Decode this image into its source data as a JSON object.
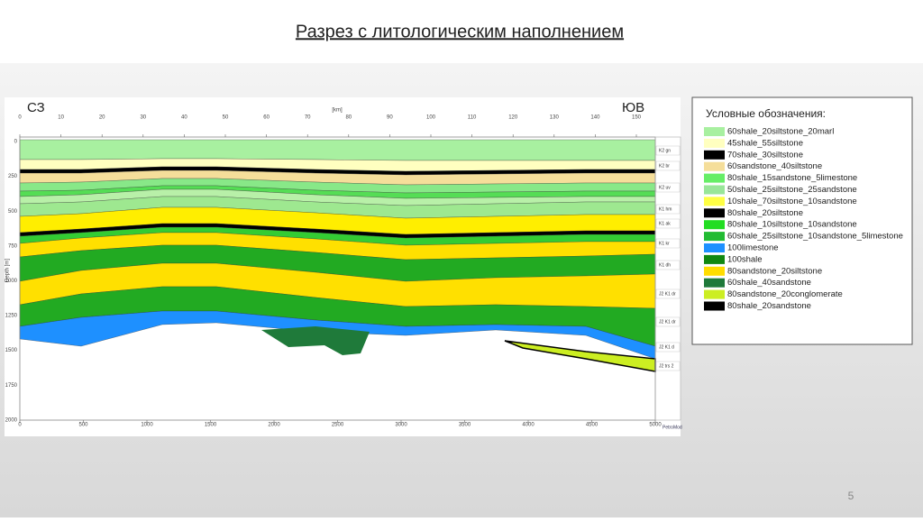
{
  "title": "Разрез с литологическим наполнением",
  "page_number": "5",
  "section": {
    "left_label": "СЗ",
    "right_label": "ЮВ",
    "top_axis_label": "[km]",
    "top_ticks": [
      0,
      10,
      20,
      30,
      40,
      50,
      60,
      70,
      80,
      90,
      100,
      110,
      120,
      130,
      140,
      150
    ],
    "depth_label": "Depth [m]",
    "depth_ticks": [
      0,
      250,
      500,
      750,
      1000,
      1250,
      1500,
      1750,
      2000
    ],
    "bottom_ticks": [
      0,
      500,
      1000,
      1500,
      2000,
      2500,
      3000,
      3500,
      4000,
      4500,
      5000
    ],
    "layer_labels": [
      "K2 gn",
      "K2 br",
      "K2 uv",
      "K1 hm",
      "K1 ak",
      "K1 kr",
      "K1 dh",
      "J2 K1 dr",
      "J2 K1 dr",
      "J2 K1 d",
      "J2 trs 2"
    ],
    "logo": "PetroMod"
  },
  "legend": {
    "title": "Условные обозначения:",
    "items": [
      {
        "label": "60shale_20siltstone_20marl",
        "color": "#a8f0a0"
      },
      {
        "label": "45shale_55siltstone",
        "color": "#ffffc0"
      },
      {
        "label": "70shale_30siltstone",
        "color": "#000000"
      },
      {
        "label": "60sandstone_40siltstone",
        "color": "#f5de9a"
      },
      {
        "label": "80shale_15sandstone_5limestone",
        "color": "#66ee66"
      },
      {
        "label": "50shale_25siltstone_25sandstone",
        "color": "#99e699"
      },
      {
        "label": "10shale_70siltstone_10sandstone",
        "color": "#ffff44"
      },
      {
        "label": "80shale_20siltstone",
        "color": "#000000"
      },
      {
        "label": "80shale_10siltstone_10sandstone",
        "color": "#22dd22"
      },
      {
        "label": "60shale_25siltstone_10sandstone_5limestone",
        "color": "#22bb33"
      },
      {
        "label": "100limestone",
        "color": "#1e90ff"
      },
      {
        "label": "100shale",
        "color": "#118811"
      },
      {
        "label": "80sandstone_20siltstone",
        "color": "#ffdd00"
      },
      {
        "label": "60shale_40sandstone",
        "color": "#1f7a3a"
      },
      {
        "label": "80sandstone_20conglomerate",
        "color": "#ccee22"
      },
      {
        "label": "80shale_20sandstone",
        "color": "#000000"
      }
    ]
  }
}
